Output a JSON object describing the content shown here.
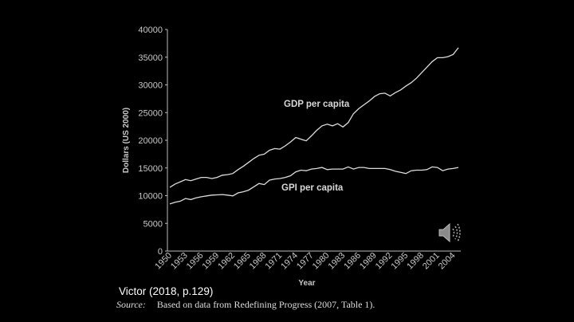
{
  "chart_data": {
    "type": "line",
    "title": "",
    "xlabel": "Year",
    "ylabel": "Dollars (US 2000)",
    "xlim": [
      1950,
      2005
    ],
    "ylim": [
      0,
      40000
    ],
    "yticks": [
      0,
      5000,
      10000,
      15000,
      20000,
      25000,
      30000,
      35000,
      40000
    ],
    "xticks": [
      1950,
      1953,
      1956,
      1959,
      1962,
      1965,
      1968,
      1971,
      1974,
      1977,
      1980,
      1983,
      1986,
      1989,
      1992,
      1995,
      1998,
      2001,
      2004
    ],
    "grid": false,
    "line_color": "#dcdcdc",
    "background": "#000000",
    "x": [
      1950,
      1951,
      1952,
      1953,
      1954,
      1955,
      1956,
      1957,
      1958,
      1959,
      1960,
      1961,
      1962,
      1963,
      1964,
      1965,
      1966,
      1967,
      1968,
      1969,
      1970,
      1971,
      1972,
      1973,
      1974,
      1975,
      1976,
      1977,
      1978,
      1979,
      1980,
      1981,
      1982,
      1983,
      1984,
      1985,
      1986,
      1987,
      1988,
      1989,
      1990,
      1991,
      1992,
      1993,
      1994,
      1995,
      1996,
      1997,
      1998,
      1999,
      2000,
      2001,
      2002,
      2003,
      2004,
      2005
    ],
    "series": [
      {
        "name": "GDP per capita",
        "values": [
          11500,
          12100,
          12500,
          12900,
          12700,
          13000,
          13300,
          13300,
          13100,
          13300,
          13700,
          13800,
          14000,
          14700,
          15300,
          16000,
          16700,
          17300,
          17500,
          18200,
          18500,
          18400,
          19000,
          19700,
          20500,
          20200,
          19900,
          20800,
          21800,
          22600,
          22900,
          22600,
          23000,
          22400,
          23200,
          24800,
          25700,
          26400,
          27100,
          27900,
          28400,
          28500,
          28000,
          28600,
          29100,
          29800,
          30400,
          31200,
          32200,
          33200,
          34200,
          34900,
          34900,
          35100,
          35500,
          36700
        ]
      },
      {
        "name": "GPI per capita",
        "values": [
          8500,
          8800,
          9000,
          9500,
          9300,
          9600,
          9800,
          9950,
          10100,
          10150,
          10200,
          10100,
          9950,
          10500,
          10700,
          11000,
          11600,
          12200,
          12000,
          12800,
          13000,
          13100,
          13300,
          13600,
          14300,
          14600,
          14500,
          14800,
          14900,
          15100,
          14700,
          14800,
          14800,
          14800,
          15200,
          14800,
          15100,
          15100,
          14900,
          14900,
          14900,
          14900,
          14700,
          14400,
          14200,
          14000,
          14500,
          14600,
          14600,
          14700,
          15200,
          15100,
          14500,
          14800,
          14900,
          15100
        ]
      }
    ]
  },
  "caption": "Victor (2018, p.129)",
  "source": {
    "label": "Source:",
    "text": "Based on data from Redefining Progress (2007, Table 1)."
  },
  "speaker_icon": "speaker-audio-icon"
}
